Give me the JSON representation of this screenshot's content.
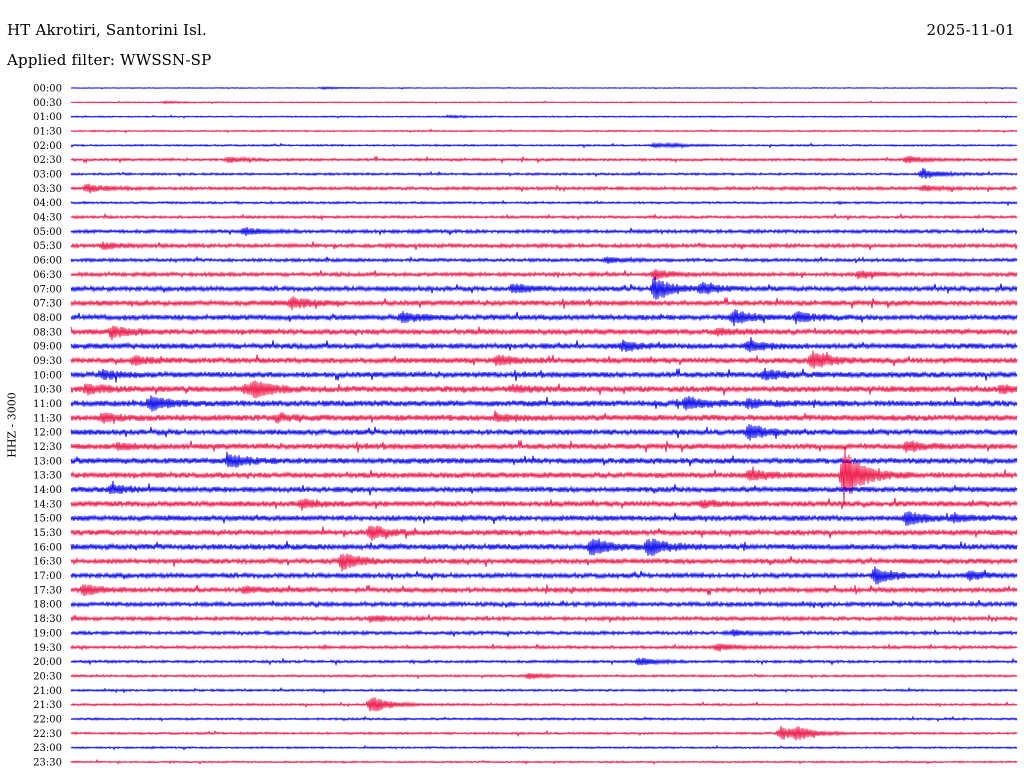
{
  "header": {
    "station": "HT Akrotiri, Santorini Isl.",
    "date": "2025-11-01",
    "filter": "Applied filter: WWSSN-SP"
  },
  "channel_label": "HHZ - 3000",
  "colors": {
    "trace_even": "#0000ee",
    "trace_odd": "#ee1144",
    "text": "#000000"
  },
  "chart_data": {
    "type": "line",
    "plot_kind": "helicorder",
    "row_labels": [
      "00:00",
      "00:30",
      "01:00",
      "01:30",
      "02:00",
      "02:30",
      "03:00",
      "03:30",
      "04:00",
      "04:30",
      "05:00",
      "05:30",
      "06:00",
      "06:30",
      "07:00",
      "07:30",
      "08:00",
      "08:30",
      "09:00",
      "09:30",
      "10:00",
      "10:30",
      "11:00",
      "11:30",
      "12:00",
      "12:30",
      "13:00",
      "13:30",
      "14:00",
      "14:30",
      "15:00",
      "15:30",
      "16:00",
      "16:30",
      "17:00",
      "17:30",
      "18:00",
      "18:30",
      "19:00",
      "19:30",
      "20:00",
      "20:30",
      "21:00",
      "21:30",
      "22:00",
      "22:30",
      "23:00",
      "23:30"
    ],
    "row_minutes": 30,
    "noise_level": [
      0.4,
      0.5,
      0.6,
      0.7,
      0.8,
      1.2,
      1.0,
      1.5,
      1.0,
      1.2,
      1.6,
      1.8,
      1.5,
      1.8,
      2.2,
      2.4,
      2.4,
      2.5,
      2.5,
      2.5,
      2.6,
      2.8,
      2.8,
      2.8,
      2.5,
      2.6,
      2.6,
      2.6,
      2.5,
      2.5,
      2.5,
      2.5,
      2.6,
      2.4,
      2.2,
      2.2,
      2.0,
      1.8,
      1.6,
      1.4,
      1.2,
      1.0,
      1.0,
      1.0,
      1.0,
      1.0,
      0.8,
      0.8
    ],
    "events": [
      {
        "row": 0,
        "minute": 8,
        "amplitude": 1.0
      },
      {
        "row": 1,
        "minute": 3,
        "amplitude": 1.0
      },
      {
        "row": 2,
        "minute": 12,
        "amplitude": 1.0
      },
      {
        "row": 4,
        "minute": 19,
        "amplitude": 1.2
      },
      {
        "row": 4,
        "minute": 18.5,
        "amplitude": 1.8
      },
      {
        "row": 5,
        "minute": 5,
        "amplitude": 2.5
      },
      {
        "row": 5,
        "minute": 26.5,
        "amplitude": 3.5
      },
      {
        "row": 6,
        "minute": 27,
        "amplitude": 5.5
      },
      {
        "row": 7,
        "minute": 0.5,
        "amplitude": 4.5
      },
      {
        "row": 7,
        "minute": 27,
        "amplitude": 2.5
      },
      {
        "row": 10,
        "minute": 5.5,
        "amplitude": 3.5
      },
      {
        "row": 11,
        "minute": 1,
        "amplitude": 3.0
      },
      {
        "row": 12,
        "minute": 17,
        "amplitude": 3.0
      },
      {
        "row": 13,
        "minute": 25,
        "amplitude": 3.5
      },
      {
        "row": 13,
        "minute": 18.5,
        "amplitude": 4.5
      },
      {
        "row": 14,
        "minute": 14,
        "amplitude": 4.5
      },
      {
        "row": 14,
        "minute": 18.5,
        "amplitude": 12.0
      },
      {
        "row": 14,
        "minute": 20,
        "amplitude": 5.0
      },
      {
        "row": 15,
        "minute": 7,
        "amplitude": 5.5
      },
      {
        "row": 16,
        "minute": 10.5,
        "amplitude": 5.0
      },
      {
        "row": 16,
        "minute": 21,
        "amplitude": 7.0
      },
      {
        "row": 16,
        "minute": 23,
        "amplitude": 5.0
      },
      {
        "row": 17,
        "minute": 1.3,
        "amplitude": 6.0
      },
      {
        "row": 17,
        "minute": 20.5,
        "amplitude": 3.5
      },
      {
        "row": 18,
        "minute": 17.5,
        "amplitude": 4.5
      },
      {
        "row": 18,
        "minute": 21.5,
        "amplitude": 6.0
      },
      {
        "row": 19,
        "minute": 2,
        "amplitude": 4.0
      },
      {
        "row": 19,
        "minute": 13.5,
        "amplitude": 5.0
      },
      {
        "row": 19,
        "minute": 23.5,
        "amplitude": 9.0
      },
      {
        "row": 20,
        "minute": 1,
        "amplitude": 4.0
      },
      {
        "row": 20,
        "minute": 22,
        "amplitude": 5.0
      },
      {
        "row": 21,
        "minute": 0.5,
        "amplitude": 5.0
      },
      {
        "row": 21,
        "minute": 5.5,
        "amplitude": 4.0
      },
      {
        "row": 21,
        "minute": 5.8,
        "amplitude": 7.0
      },
      {
        "row": 21,
        "minute": 14,
        "amplitude": 3.0
      },
      {
        "row": 21,
        "minute": 29.5,
        "amplitude": 4.0
      },
      {
        "row": 22,
        "minute": 2.5,
        "amplitude": 6.5
      },
      {
        "row": 22,
        "minute": 19.5,
        "amplitude": 7.0
      },
      {
        "row": 22,
        "minute": 21.5,
        "amplitude": 4.0
      },
      {
        "row": 23,
        "minute": 1,
        "amplitude": 4.0
      },
      {
        "row": 23,
        "minute": 6.5,
        "amplitude": 3.5
      },
      {
        "row": 23,
        "minute": 13.5,
        "amplitude": 4.0
      },
      {
        "row": 24,
        "minute": 21.5,
        "amplitude": 8.0
      },
      {
        "row": 25,
        "minute": 1.5,
        "amplitude": 3.0
      },
      {
        "row": 25,
        "minute": 26.5,
        "amplitude": 5.0
      },
      {
        "row": 26,
        "minute": 5,
        "amplitude": 7.0
      },
      {
        "row": 27,
        "minute": 21.5,
        "amplitude": 6.0
      },
      {
        "row": 27,
        "minute": 24.5,
        "amplitude": 28.0
      },
      {
        "row": 28,
        "minute": 1.3,
        "amplitude": 4.0
      },
      {
        "row": 29,
        "minute": 7.3,
        "amplitude": 4.5
      },
      {
        "row": 29,
        "minute": 20,
        "amplitude": 3.5
      },
      {
        "row": 30,
        "minute": 26.5,
        "amplitude": 8.0
      },
      {
        "row": 30,
        "minute": 28,
        "amplitude": 3.0
      },
      {
        "row": 31,
        "minute": 9.5,
        "amplitude": 7.0
      },
      {
        "row": 32,
        "minute": 16.5,
        "amplitude": 9.0
      },
      {
        "row": 32,
        "minute": 18.3,
        "amplitude": 9.0
      },
      {
        "row": 33,
        "minute": 8.6,
        "amplitude": 9.0
      },
      {
        "row": 34,
        "minute": 25.5,
        "amplitude": 8.0
      },
      {
        "row": 34,
        "minute": 28.5,
        "amplitude": 4.0
      },
      {
        "row": 35,
        "minute": 0.4,
        "amplitude": 5.0
      },
      {
        "row": 35,
        "minute": 5.5,
        "amplitude": 3.0
      },
      {
        "row": 37,
        "minute": 9.5,
        "amplitude": 3.5
      },
      {
        "row": 38,
        "minute": 21,
        "amplitude": 3.0
      },
      {
        "row": 39,
        "minute": 20.5,
        "amplitude": 3.5
      },
      {
        "row": 40,
        "minute": 18,
        "amplitude": 4.0
      },
      {
        "row": 41,
        "minute": 14.5,
        "amplitude": 3.0
      },
      {
        "row": 43,
        "minute": 9.5,
        "amplitude": 9.0
      },
      {
        "row": 45,
        "minute": 22.5,
        "amplitude": 7.0
      },
      {
        "row": 45,
        "minute": 23,
        "amplitude": 5.0
      }
    ]
  }
}
